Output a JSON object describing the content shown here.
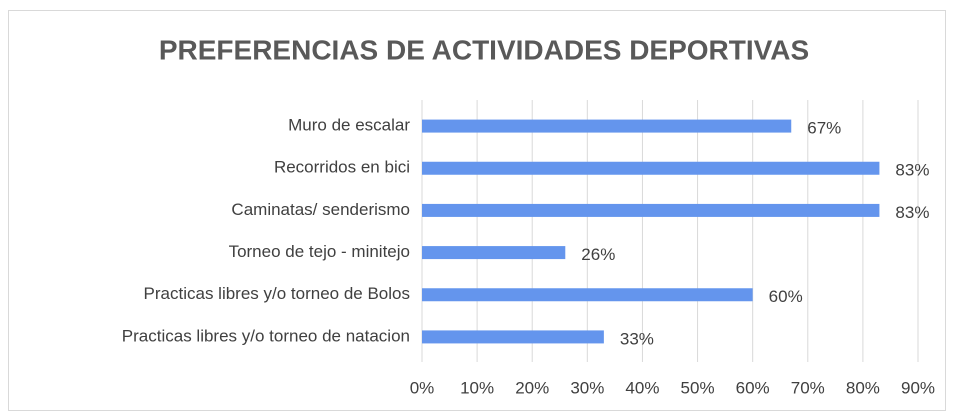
{
  "chart_data": {
    "type": "bar",
    "orientation": "horizontal",
    "title": "PREFERENCIAS DE ACTIVIDADES DEPORTIVAS",
    "categories": [
      "Muro de escalar",
      "Recorridos en bici",
      "Caminatas/ senderismo",
      "Torneo de tejo - minitejo",
      "Practicas libres y/o torneo de Bolos",
      "Practicas libres y/o torneo de natacion"
    ],
    "values": [
      67,
      83,
      83,
      26,
      60,
      33
    ],
    "value_labels": [
      "67%",
      "83%",
      "83%",
      "26%",
      "60%",
      "33%"
    ],
    "color": "#6495ed",
    "xlim": [
      0,
      90
    ],
    "xticks": [
      {
        "value": 0,
        "label": "0%"
      },
      {
        "value": 10,
        "label": "10%"
      },
      {
        "value": 20,
        "label": "20%"
      },
      {
        "value": 30,
        "label": "30%"
      },
      {
        "value": 40,
        "label": "40%"
      },
      {
        "value": 50,
        "label": "50%"
      },
      {
        "value": 60,
        "label": "60%"
      },
      {
        "value": 70,
        "label": "70%"
      },
      {
        "value": 80,
        "label": "80%"
      },
      {
        "value": 90,
        "label": "90%"
      }
    ],
    "grid": true
  }
}
